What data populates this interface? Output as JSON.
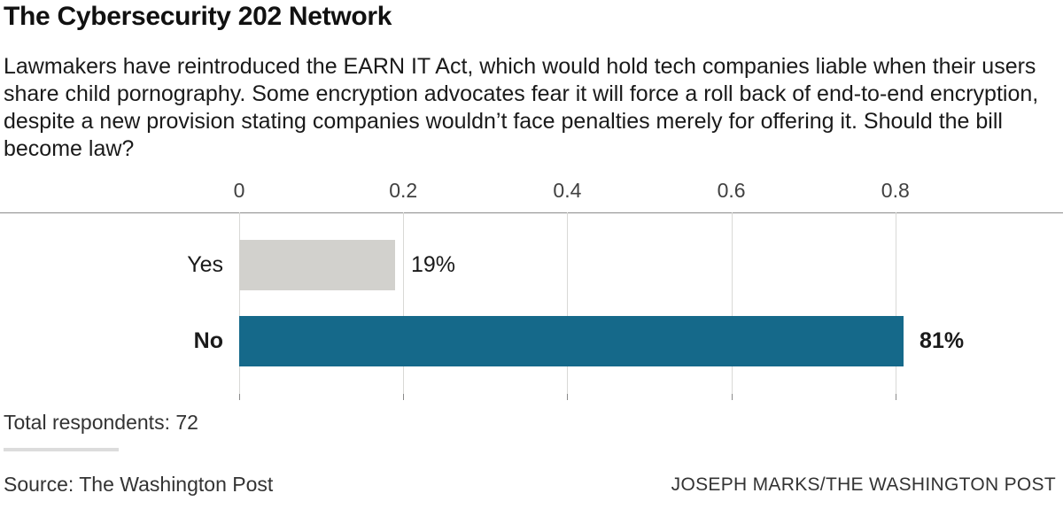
{
  "header": {
    "title": "The Cybersecurity 202 Network",
    "subtitle": "Lawmakers have reintroduced the EARN IT Act, which would hold tech companies liable when their users share child pornography. Some encryption advocates fear it will force a roll back of end-to-end encryption, despite a new provision stating companies wouldn’t face penalties merely for offering it. Should the bill become law?"
  },
  "chart_data": {
    "type": "bar",
    "orientation": "horizontal",
    "title": "The Cybersecurity 202 Network",
    "categories": [
      "Yes",
      "No"
    ],
    "values": [
      0.19,
      0.81
    ],
    "value_labels": [
      "19%",
      "81%"
    ],
    "x_ticks": [
      "0",
      "0.2",
      "0.4",
      "0.6",
      "0.8"
    ],
    "axis_max": 1.0,
    "grid": "vertical",
    "legend": "none",
    "bar_colors": [
      "#d2d1cd",
      "#15698a"
    ]
  },
  "footer": {
    "total_respondents": "Total respondents: 72",
    "source": "Source: The Washington Post",
    "credit": "JOSEPH MARKS/THE WASHINGTON POST"
  }
}
